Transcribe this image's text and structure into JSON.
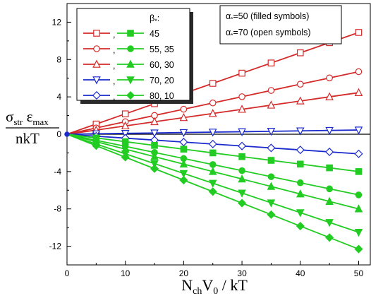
{
  "chart_data": {
    "type": "line",
    "x": [
      0,
      5,
      10,
      15,
      20,
      25,
      30,
      35,
      40,
      45,
      50
    ],
    "xlabel": {
      "main": "N",
      "sub1": "ch",
      "mid": "V",
      "sub2": "0",
      "tail": " / kT"
    },
    "ylabel": {
      "num": {
        "a": "σ",
        "a_sub": "str",
        "b": " ε",
        "b_sub": "max"
      },
      "den": "nkT"
    },
    "xlim": [
      0,
      52
    ],
    "ylim": [
      -14,
      14
    ],
    "xticks": [
      0,
      10,
      20,
      30,
      40,
      50
    ],
    "yticks": [
      -12,
      -8,
      -4,
      0,
      4,
      8,
      12
    ],
    "ytick_labels": [
      "-12",
      "-8",
      "-4",
      "0",
      "4",
      "8",
      "12"
    ],
    "xtick_labels": [
      "0",
      "10",
      "20",
      "30",
      "40",
      "50"
    ],
    "legend": {
      "title": "β",
      "title_sub": "*",
      "title_tail": ":",
      "placement": "top-left",
      "entries": [
        {
          "label": "45",
          "color": "#d42a2a",
          "fill_color": "#22cc22",
          "marker": "square"
        },
        {
          "label": "55, 35",
          "color": "#d42a2a",
          "fill_color": "#22cc22",
          "marker": "circle"
        },
        {
          "label": "60, 30",
          "color": "#d42a2a",
          "fill_color": "#22cc22",
          "marker": "triangle-up"
        },
        {
          "label": "70, 20",
          "color": "#1a2acc",
          "fill_color": "#22cc22",
          "marker": "triangle-down"
        },
        {
          "label": "80, 10",
          "color": "#1a2acc",
          "fill_color": "#22cc22",
          "marker": "diamond"
        }
      ]
    },
    "note": {
      "line1": {
        "a": "α",
        "a_sub": "*",
        "b": "=50 (filled symbols)"
      },
      "line2": {
        "a": "α",
        "a_sub": "*",
        "b": "=70 (open symbols)"
      },
      "placement": "top-right"
    },
    "series": [
      {
        "marker": "square",
        "fill": "open",
        "color": "#d42a2a",
        "slope": 0.218
      },
      {
        "marker": "circle",
        "fill": "open",
        "color": "#d42a2a",
        "slope": 0.134
      },
      {
        "marker": "triangle-up",
        "fill": "open",
        "color": "#d42a2a",
        "slope": 0.089
      },
      {
        "marker": "triangle-down",
        "fill": "open",
        "color": "#1a2acc",
        "slope": 0.009
      },
      {
        "marker": "diamond",
        "fill": "open",
        "color": "#1a2acc",
        "slope": -0.042
      },
      {
        "marker": "square",
        "fill": "filled",
        "color": "#22cc22",
        "slope": -0.08
      },
      {
        "marker": "circle",
        "fill": "filled",
        "color": "#22cc22",
        "slope": -0.13
      },
      {
        "marker": "triangle-up",
        "fill": "filled",
        "color": "#22cc22",
        "slope": -0.16
      },
      {
        "marker": "triangle-down",
        "fill": "filled",
        "color": "#22cc22",
        "slope": -0.21
      },
      {
        "marker": "diamond",
        "fill": "filled",
        "color": "#22cc22",
        "slope": -0.246
      }
    ]
  }
}
